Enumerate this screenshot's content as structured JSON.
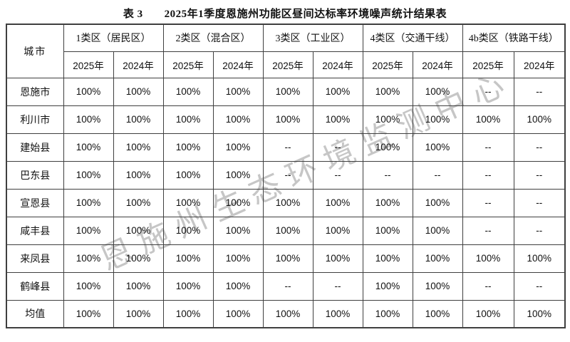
{
  "title": {
    "prefix": "表 3",
    "text": "2025年1季度恩施州功能区昼间达标率环境噪声统计结果表"
  },
  "watermark": {
    "text": "恩施州生态环境监测中心"
  },
  "colors": {
    "border": "#3f3f3f",
    "text": "#111111",
    "watermark": "#c6c6c6",
    "background": "#ffffff"
  },
  "table": {
    "city_header": "城市",
    "groups": [
      {
        "label": "1类区（居民区）"
      },
      {
        "label": "2类区（混合区）"
      },
      {
        "label": "3类区（工业区）"
      },
      {
        "label": "4类区（交通干线）"
      },
      {
        "label": "4b类区（铁路干线）"
      }
    ],
    "year_headers": [
      "2025年",
      "2024年"
    ],
    "rows": [
      {
        "city": "恩施市",
        "values": [
          "100%",
          "100%",
          "100%",
          "100%",
          "100%",
          "100%",
          "100%",
          "100%",
          "--",
          "--"
        ]
      },
      {
        "city": "利川市",
        "values": [
          "100%",
          "100%",
          "100%",
          "100%",
          "100%",
          "100%",
          "100%",
          "100%",
          "100%",
          "100%"
        ]
      },
      {
        "city": "建始县",
        "values": [
          "100%",
          "100%",
          "100%",
          "100%",
          "--",
          "--",
          "100%",
          "100%",
          "--",
          "--"
        ]
      },
      {
        "city": "巴东县",
        "values": [
          "100%",
          "100%",
          "100%",
          "100%",
          "--",
          "--",
          "--",
          "--",
          "--",
          "--"
        ]
      },
      {
        "city": "宣恩县",
        "values": [
          "100%",
          "100%",
          "100%",
          "100%",
          "100%",
          "100%",
          "100%",
          "100%",
          "--",
          "--"
        ]
      },
      {
        "city": "咸丰县",
        "values": [
          "100%",
          "100%",
          "100%",
          "100%",
          "100%",
          "100%",
          "100%",
          "100%",
          "--",
          "--"
        ]
      },
      {
        "city": "来凤县",
        "values": [
          "100%",
          "100%",
          "100%",
          "100%",
          "100%",
          "100%",
          "100%",
          "100%",
          "100%",
          "100%"
        ]
      },
      {
        "city": "鹤峰县",
        "values": [
          "100%",
          "100%",
          "100%",
          "100%",
          "--",
          "--",
          "100%",
          "100%",
          "--",
          "--"
        ]
      },
      {
        "city": "均值",
        "values": [
          "100%",
          "100%",
          "100%",
          "100%",
          "100%",
          "100%",
          "100%",
          "100%",
          "100%",
          "100%"
        ]
      }
    ]
  }
}
